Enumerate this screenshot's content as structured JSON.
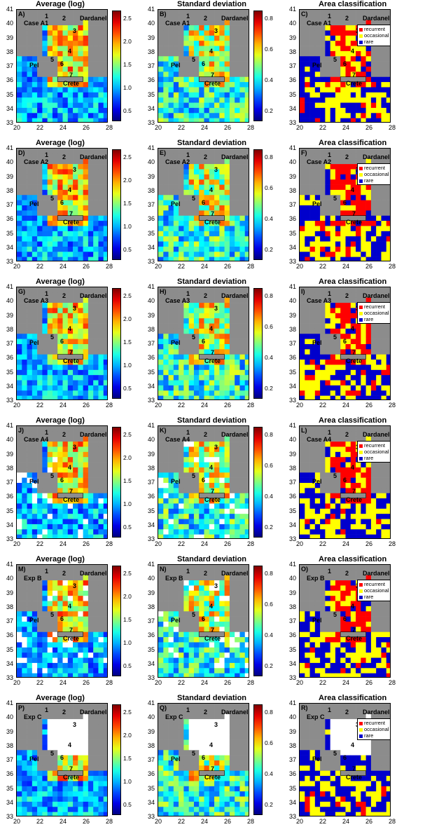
{
  "titles": {
    "average": "Average (log)",
    "stdev": "Standard deviation",
    "area": "Area classification"
  },
  "y_ticks": [
    "41",
    "40",
    "39",
    "38",
    "37",
    "36",
    "35",
    "34",
    "33"
  ],
  "x_ticks": [
    "20",
    "22",
    "24",
    "26",
    "28"
  ],
  "avg_colorbar_ticks": [
    "2.5",
    "2.0",
    "1.5",
    "1.0",
    "0.5"
  ],
  "std_colorbar_ticks": [
    "0.8",
    "0.6",
    "0.4",
    "0.2"
  ],
  "legend": [
    "recurrent",
    "occasional",
    "rare"
  ],
  "place_labels": {
    "dardanelles": "Dardanelles",
    "pel": "Pel",
    "crete": "Crete",
    "zone_numbers": [
      "1",
      "2",
      "3",
      "4",
      "5",
      "6",
      "7"
    ]
  },
  "colors": {
    "land": "#8c8c8c",
    "recurrent": "#ff0000",
    "occasional": "#ffff00",
    "rare": "#0000cc",
    "nodata": "#ffffff"
  },
  "rows": [
    {
      "case": "Case A1",
      "letters": [
        "A)",
        "B)",
        "C)"
      ]
    },
    {
      "case": "Case A2",
      "letters": [
        "D)",
        "E)",
        "F)"
      ]
    },
    {
      "case": "Case A3",
      "letters": [
        "G)",
        "H)",
        "I)"
      ]
    },
    {
      "case": "Case A4",
      "letters": [
        "J)",
        "K)",
        "L)"
      ]
    },
    {
      "case": "Exp B",
      "letters": [
        "M)",
        "N)",
        "O)"
      ]
    },
    {
      "case": "Exp C",
      "letters": [
        "P)",
        "Q)",
        "R)"
      ]
    }
  ]
}
